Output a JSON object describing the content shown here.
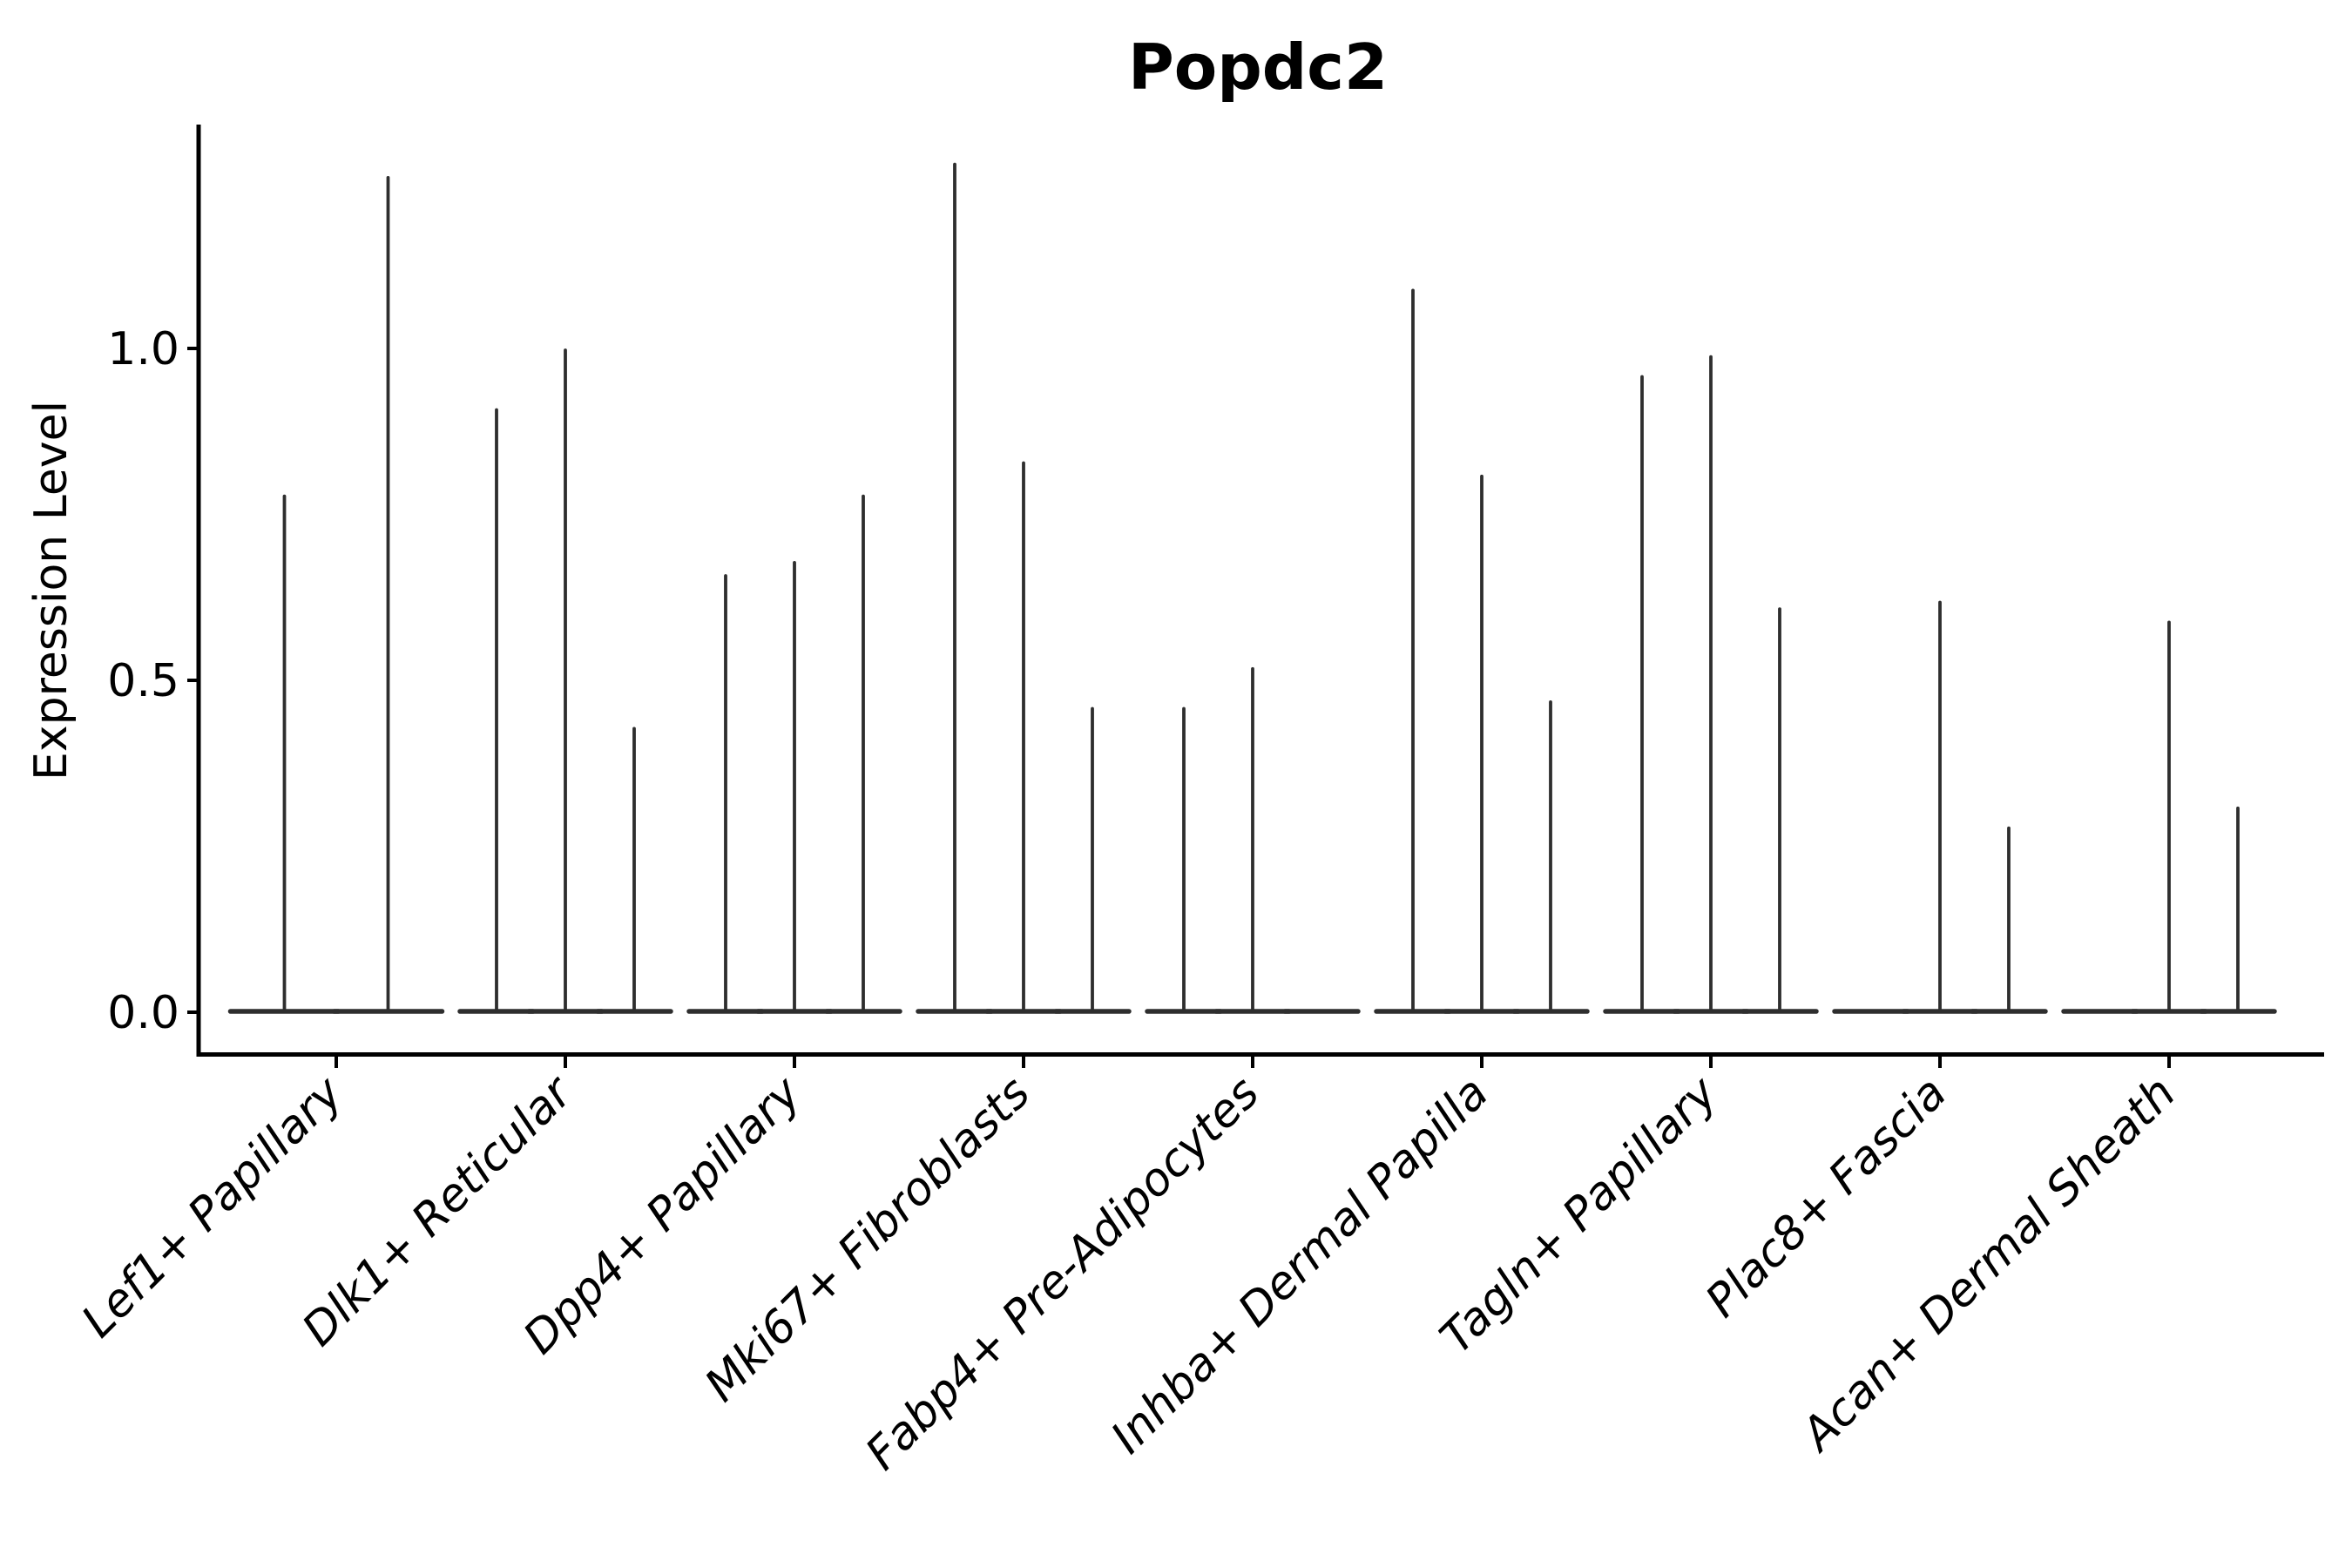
{
  "figure": {
    "title": "Popdc2",
    "ylabel": "Expression Level",
    "background_color": "#ffffff",
    "text_color": "#000000"
  },
  "chart_data": {
    "type": "violin",
    "title": "Popdc2",
    "xlabel": "",
    "ylabel": "Expression Level",
    "ylim": [
      -0.06,
      1.34
    ],
    "grid": false,
    "legend": "none",
    "violin_color": "#2e2e2e",
    "axis_color": "#000000",
    "yticks": [
      {
        "value": 0.0,
        "label": "0.0"
      },
      {
        "value": 0.5,
        "label": "0.5"
      },
      {
        "value": 1.0,
        "label": "1.0"
      }
    ],
    "categories": [
      "Lef1+ Papillary",
      "Dlk1+ Reticular",
      "Dpp4+ Papillary",
      "Mki67+ Fibroblasts",
      "Fabp4+ Pre-Adipocytes",
      "Inhba+ Dermal Papilla",
      "Tagln+ Papillary",
      "Plac8+ Fascia",
      "Acan+ Dermal Sheath"
    ],
    "groups": [
      {
        "category": "Lef1+ Papillary",
        "violin_max": [
          0.78,
          1.26
        ]
      },
      {
        "category": "Dlk1+ Reticular",
        "violin_max": [
          0.91,
          1.0,
          0.43
        ]
      },
      {
        "category": "Dpp4+ Papillary",
        "violin_max": [
          0.66,
          0.68,
          0.78
        ]
      },
      {
        "category": "Mki67+ Fibroblasts",
        "violin_max": [
          1.28,
          0.83,
          0.46
        ]
      },
      {
        "category": "Fabp4+ Pre-Adipocytes",
        "violin_max": [
          0.46,
          0.52,
          0
        ]
      },
      {
        "category": "Inhba+ Dermal Papilla",
        "violin_max": [
          1.09,
          0.81,
          0.47
        ]
      },
      {
        "category": "Tagln+ Papillary",
        "violin_max": [
          0.96,
          0.99,
          0.61
        ]
      },
      {
        "category": "Plac8+ Fascia",
        "violin_max": [
          0,
          0.62,
          0.28
        ]
      },
      {
        "category": "Acan+ Dermal Sheath",
        "violin_max": [
          0,
          0.59,
          0.31
        ]
      }
    ]
  }
}
